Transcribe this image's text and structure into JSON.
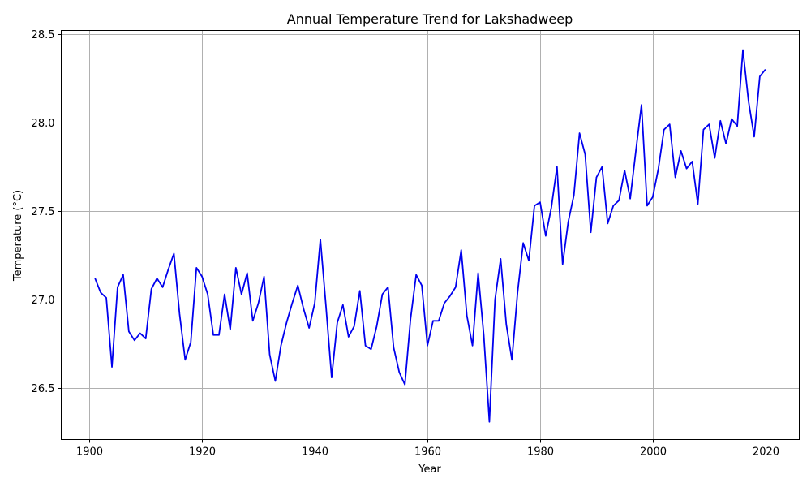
{
  "chart_data": {
    "type": "line",
    "title": "Annual Temperature Trend for Lakshadweep",
    "xlabel": "Year",
    "ylabel": "Temperature (°C)",
    "xlim": [
      1895,
      2026
    ],
    "ylim": [
      26.21,
      28.52
    ],
    "xticks": [
      1900,
      1920,
      1940,
      1960,
      1980,
      2000,
      2020
    ],
    "yticks": [
      26.5,
      27.0,
      27.5,
      28.0,
      28.5
    ],
    "ytick_labels": [
      "26.5",
      "27.0",
      "27.5",
      "28.0",
      "28.5"
    ],
    "grid": true,
    "line_color": "#0000ee",
    "series": [
      {
        "x": [
          1901,
          1902,
          1903,
          1904,
          1905,
          1906,
          1907,
          1908,
          1909,
          1910,
          1911,
          1912,
          1913,
          1914,
          1915,
          1916,
          1917,
          1918,
          1919,
          1920,
          1921,
          1922,
          1923,
          1924,
          1925,
          1926,
          1927,
          1928,
          1929,
          1930,
          1931,
          1932,
          1933,
          1934,
          1935,
          1936,
          1937,
          1938,
          1939,
          1940,
          1941,
          1942,
          1943,
          1944,
          1945,
          1946,
          1947,
          1948,
          1949,
          1950,
          1951,
          1952,
          1953,
          1954,
          1955,
          1956,
          1957,
          1958,
          1959,
          1960,
          1961,
          1962,
          1963,
          1964,
          1965,
          1966,
          1967,
          1968,
          1969,
          1970,
          1971,
          1972,
          1973,
          1974,
          1975,
          1976,
          1977,
          1978,
          1979,
          1980,
          1981,
          1982,
          1983,
          1984,
          1985,
          1986,
          1987,
          1988,
          1989,
          1990,
          1991,
          1992,
          1993,
          1994,
          1995,
          1996,
          1997,
          1998,
          1999,
          2000,
          2001,
          2002,
          2003,
          2004,
          2005,
          2006,
          2007,
          2008,
          2009,
          2010,
          2011,
          2012,
          2013,
          2014,
          2015,
          2016,
          2017,
          2018,
          2019,
          2020
        ],
        "y": [
          27.12,
          27.04,
          27.01,
          26.62,
          27.07,
          27.14,
          26.82,
          26.77,
          26.81,
          26.78,
          27.06,
          27.12,
          27.07,
          27.17,
          27.26,
          26.92,
          26.66,
          26.76,
          27.18,
          27.13,
          27.03,
          26.8,
          26.8,
          27.03,
          26.83,
          27.18,
          27.03,
          27.15,
          26.88,
          26.98,
          27.13,
          26.69,
          26.54,
          26.74,
          26.87,
          26.98,
          27.08,
          26.95,
          26.84,
          26.98,
          27.34,
          26.96,
          26.56,
          26.87,
          26.97,
          26.79,
          26.85,
          27.05,
          26.74,
          26.72,
          26.85,
          27.03,
          27.07,
          26.73,
          26.59,
          26.52,
          26.89,
          27.14,
          27.08,
          26.74,
          26.88,
          26.88,
          26.98,
          27.02,
          27.07,
          27.28,
          26.91,
          26.74,
          27.15,
          26.8,
          26.31,
          27.0,
          27.23,
          26.86,
          26.66,
          27.04,
          27.32,
          27.22,
          27.53,
          27.55,
          27.36,
          27.52,
          27.75,
          27.2,
          27.44,
          27.59,
          27.94,
          27.82,
          27.38,
          27.69,
          27.75,
          27.43,
          27.53,
          27.56,
          27.73,
          27.57,
          27.84,
          28.1,
          27.53,
          27.58,
          27.74,
          27.96,
          27.99,
          27.69,
          27.84,
          27.74,
          27.78,
          27.54,
          27.96,
          27.99,
          27.8,
          28.01,
          27.88,
          28.02,
          27.98,
          28.41,
          28.12,
          27.92,
          28.26,
          28.3
        ]
      }
    ]
  }
}
